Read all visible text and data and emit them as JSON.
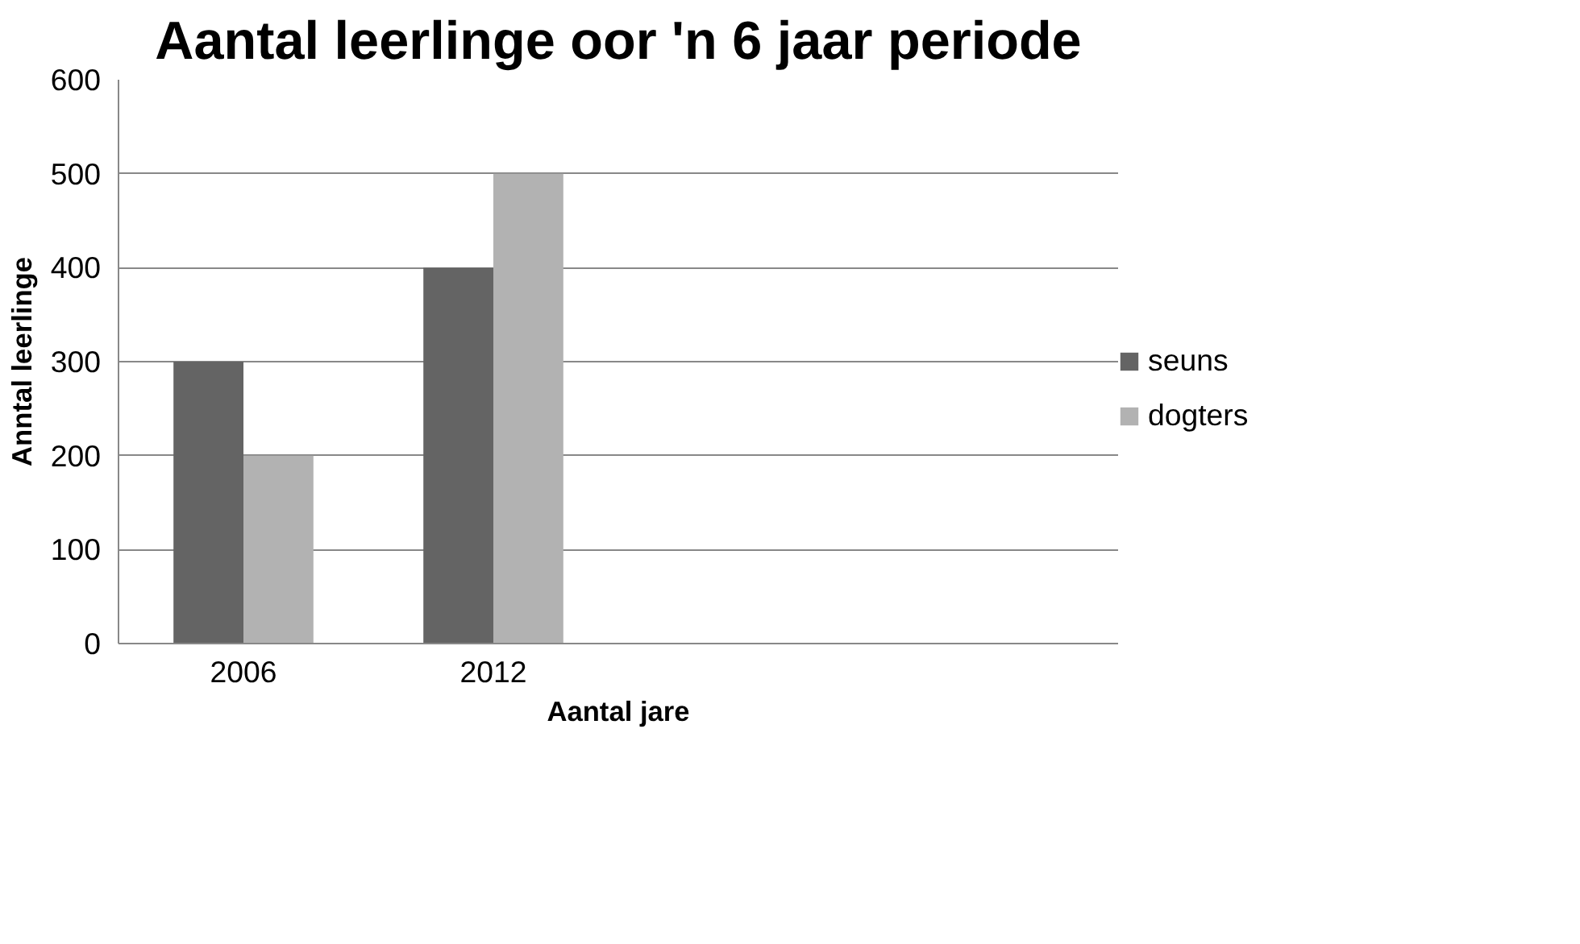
{
  "chart_data": {
    "type": "bar",
    "title": "Aantal leerlinge oor 'n 6 jaar periode",
    "xlabel": "Aantal jare",
    "ylabel": "Anntal leerlinge",
    "categories": [
      "2006",
      "2012",
      null,
      null
    ],
    "series": [
      {
        "name": "seuns",
        "color": "#646464",
        "values": [
          300,
          400,
          null,
          null
        ]
      },
      {
        "name": "dogters",
        "color": "#b2b2b2",
        "values": [
          200,
          500,
          null,
          null
        ]
      }
    ],
    "ylim": [
      0,
      600
    ],
    "yticks": [
      0,
      100,
      200,
      300,
      400,
      500,
      600
    ],
    "grid": "y",
    "legend": "right"
  }
}
